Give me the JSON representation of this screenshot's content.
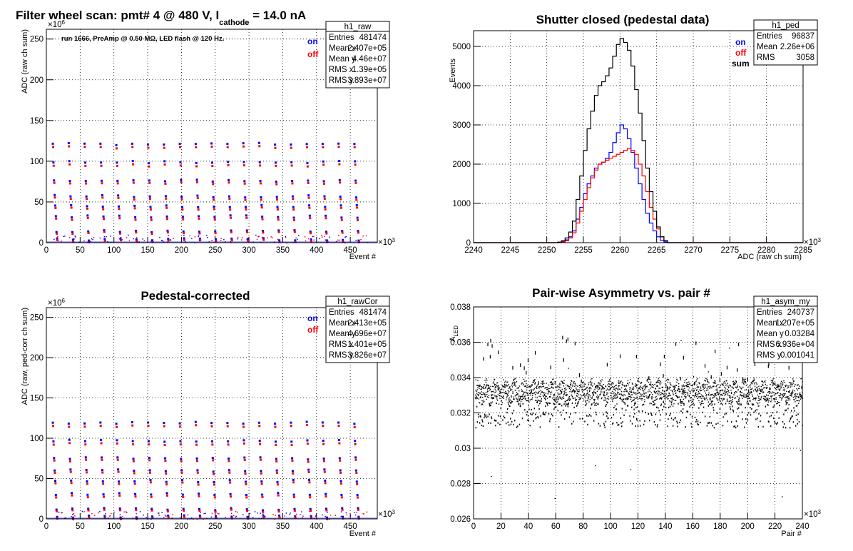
{
  "colors": {
    "on": "#0000ff",
    "off": "#ff0000",
    "sum": "#000000",
    "frame": "#000000",
    "grid": "#000000"
  },
  "chart_data": [
    {
      "id": "raw",
      "type": "scatter",
      "title": "Filter wheel scan: pmt#   4 @   480 V, I",
      "title_sub": "cathode",
      "title_tail": " = 14.0 nA",
      "xlabel": "Event #",
      "ylabel": "ADC (raw ch sum)",
      "x_exponent": "×10",
      "x_exponent_power": "3",
      "y_exponent": "×10",
      "y_exponent_power": "6",
      "xlim": [
        0,
        490
      ],
      "ylim": [
        0,
        262
      ],
      "xticks": [
        "0",
        "50",
        "100",
        "150",
        "200",
        "250",
        "300",
        "350",
        "400",
        "450"
      ],
      "yticks": [
        "0",
        "50",
        "100",
        "150",
        "200",
        "250"
      ],
      "grid": true,
      "note": "run 1666, PreAmp @ 0.50 MΩ, LED flash @  120 Hz.",
      "legend": [
        "on",
        "off"
      ],
      "stats_box": {
        "name": "h1_raw",
        "rows": [
          [
            "Entries",
            "481474"
          ],
          [
            "Mean x",
            "2.407e+05"
          ],
          [
            "Mean y",
            "4.46e+07"
          ],
          [
            "RMS x",
            "1.39e+05"
          ],
          [
            "RMS y",
            "3.893e+07"
          ]
        ]
      },
      "scan_period": 23.5,
      "levels": [
        {
          "on": 121,
          "off": 117
        },
        {
          "on": 99,
          "off": 95
        },
        {
          "on": 76,
          "off": 73
        },
        {
          "on": 57,
          "off": 54
        },
        {
          "on": 45,
          "off": 42
        },
        {
          "on": 32,
          "off": 29
        },
        {
          "on": 14,
          "off": 12
        },
        {
          "on": 4,
          "off": 2
        }
      ]
    },
    {
      "id": "ped",
      "type": "histogram",
      "title": "Shutter closed (pedestal data)",
      "xlabel": "ADC (raw ch sum)",
      "ylabel": "Events",
      "x_exponent": "×10",
      "x_exponent_power": "3",
      "xlim": [
        2240,
        2285
      ],
      "ylim": [
        0,
        5400
      ],
      "xticks": [
        "2240",
        "2245",
        "2250",
        "2255",
        "2260",
        "2265",
        "2270",
        "2275",
        "2280",
        "2285"
      ],
      "yticks": [
        "0",
        "1000",
        "2000",
        "3000",
        "4000",
        "5000"
      ],
      "grid": true,
      "legend": [
        "on",
        "off",
        "sum"
      ],
      "stats_box": {
        "name": "h1_ped",
        "rows": [
          [
            "Entries",
            "96837"
          ],
          [
            "Mean",
            "2.26e+06"
          ],
          [
            "RMS",
            "3058"
          ]
        ]
      },
      "bin_start": 2251.5,
      "bin_width": 0.5,
      "series": [
        {
          "name": "on",
          "values": [
            10,
            30,
            70,
            150,
            300,
            600,
            900,
            1250,
            1500,
            1700,
            1900,
            2000,
            2050,
            2150,
            2300,
            2550,
            2800,
            3000,
            2900,
            2650,
            2300,
            1900,
            1500,
            1100,
            750,
            500,
            300,
            150,
            60,
            20
          ]
        },
        {
          "name": "off",
          "values": [
            5,
            20,
            50,
            120,
            250,
            500,
            800,
            1100,
            1400,
            1650,
            1850,
            2000,
            2050,
            2100,
            2150,
            2200,
            2250,
            2300,
            2350,
            2400,
            2350,
            2250,
            2000,
            1700,
            1300,
            900,
            600,
            350,
            150,
            50
          ]
        },
        {
          "name": "sum",
          "values": [
            15,
            50,
            120,
            270,
            550,
            1100,
            1700,
            2350,
            2900,
            3350,
            3750,
            4000,
            4100,
            4250,
            4450,
            4750,
            5050,
            5200,
            5100,
            4900,
            4500,
            3900,
            3300,
            2600,
            1900,
            1300,
            800,
            400,
            150,
            50
          ]
        }
      ]
    },
    {
      "id": "rawcor",
      "type": "scatter",
      "title": "Pedestal-corrected",
      "xlabel": "Event #",
      "ylabel": "ADC (raw, ped-corr ch sum)",
      "x_exponent": "×10",
      "x_exponent_power": "3",
      "y_exponent": "×10",
      "y_exponent_power": "6",
      "xlim": [
        0,
        490
      ],
      "ylim": [
        0,
        262
      ],
      "xticks": [
        "0",
        "50",
        "100",
        "150",
        "200",
        "250",
        "300",
        "350",
        "400",
        "450"
      ],
      "yticks": [
        "0",
        "50",
        "100",
        "150",
        "200",
        "250"
      ],
      "grid": true,
      "legend": [
        "on",
        "off"
      ],
      "stats_box": {
        "name": "h1_rawCor",
        "rows": [
          [
            "Entries",
            "481474"
          ],
          [
            "Mean x",
            "2.413e+05"
          ],
          [
            "Mean y",
            "4.696e+07"
          ],
          [
            "RMS x",
            "1.401e+05"
          ],
          [
            "RMS y",
            "3.826e+07"
          ]
        ]
      },
      "scan_period": 23.5,
      "levels": [
        {
          "on": 119,
          "off": 115
        },
        {
          "on": 97,
          "off": 93
        },
        {
          "on": 75,
          "off": 72
        },
        {
          "on": 60,
          "off": 57
        },
        {
          "on": 47,
          "off": 44
        },
        {
          "on": 31,
          "off": 28
        },
        {
          "on": 12,
          "off": 10
        },
        {
          "on": 3,
          "off": 1
        }
      ]
    },
    {
      "id": "asym",
      "type": "scatter",
      "title": "Pair-wise Asymmetry vs. pair #",
      "xlabel": "Pair #",
      "ylabel": "A",
      "ylabel_sub": "LED",
      "x_exponent": "×10",
      "x_exponent_power": "3",
      "xlim": [
        0,
        240
      ],
      "ylim": [
        0.026,
        0.038
      ],
      "xticks": [
        "0",
        "20",
        "40",
        "60",
        "80",
        "100",
        "120",
        "140",
        "160",
        "180",
        "200",
        "220",
        "240"
      ],
      "yticks": [
        "0.026",
        "0.028",
        "0.03",
        "0.032",
        "0.034",
        "0.036",
        "0.038"
      ],
      "grid": true,
      "stats_box": {
        "name": "h1_asym_my",
        "rows": [
          [
            "Entries",
            "240737"
          ],
          [
            "Mean x",
            "1.207e+05"
          ],
          [
            "Mean y",
            "0.03284"
          ],
          [
            "RMS x",
            "6.936e+04"
          ],
          [
            "RMS y",
            "0.001041"
          ]
        ]
      },
      "band_center": 0.0332,
      "band_halfwidth": 0.0006,
      "dip_level": 0.0312,
      "spike_level": 0.0364
    }
  ]
}
